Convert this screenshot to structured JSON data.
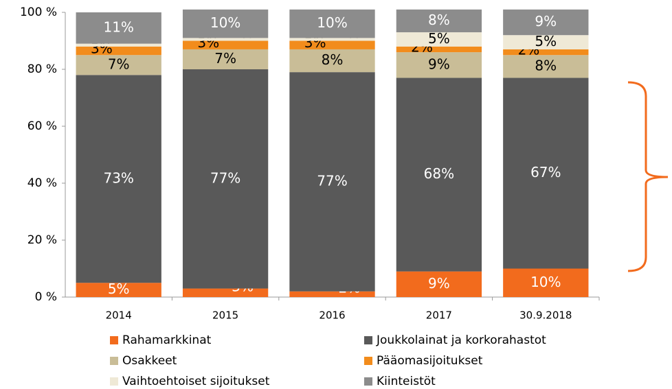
{
  "chart_data": {
    "type": "stacked_bar",
    "categories": [
      "2014",
      "2015",
      "2016",
      "2017",
      "30.9.2018"
    ],
    "series": [
      {
        "name": "Rahamarkkinat",
        "color": "#f26b1d",
        "label_color": "#ffffff",
        "values": [
          5,
          3,
          2,
          9,
          10
        ],
        "value_labels": [
          "5%",
          "3%",
          "2%",
          "9%",
          "10%"
        ]
      },
      {
        "name": "Joukkolainat ja korkorahastot",
        "color": "#595959",
        "label_color": "#ffffff",
        "values": [
          73,
          77,
          77,
          68,
          67
        ],
        "value_labels": [
          "73%",
          "77%",
          "77%",
          "68%",
          "67%"
        ]
      },
      {
        "name": "Osakkeet",
        "color": "#c9bd97",
        "label_color": "#000000",
        "values": [
          7,
          7,
          8,
          9,
          8
        ],
        "value_labels": [
          "7%",
          "7%",
          "8%",
          "9%",
          "8%"
        ]
      },
      {
        "name": "Pääomasijoitukset",
        "color": "#f28c1c",
        "label_color": "#000000",
        "values": [
          3,
          3,
          3,
          2,
          2
        ],
        "value_labels": [
          "3%",
          "3%",
          "3%",
          "2%",
          "2%"
        ]
      },
      {
        "name": "Vaihtoehtoiset sijoitukset",
        "color": "#efe9d6",
        "label_color": "#000000",
        "values": [
          1,
          1,
          1,
          5,
          5
        ],
        "value_labels": [
          "1%",
          "1%",
          "1%",
          "5%",
          "5%"
        ]
      },
      {
        "name": "Kiinteistöt",
        "color": "#8c8c8c",
        "label_color": "#ffffff",
        "values": [
          11,
          10,
          10,
          8,
          9
        ],
        "value_labels": [
          "11%",
          "10%",
          "10%",
          "8%",
          "9%"
        ]
      }
    ],
    "ylim": [
      0,
      100
    ],
    "yticks": [
      {
        "value": 0,
        "label": "0 %"
      },
      {
        "value": 20,
        "label": "20 %"
      },
      {
        "value": 40,
        "label": "40 %"
      },
      {
        "value": 60,
        "label": "60 %"
      },
      {
        "value": 80,
        "label": "80 %"
      },
      {
        "value": 100,
        "label": "100 %"
      }
    ]
  }
}
